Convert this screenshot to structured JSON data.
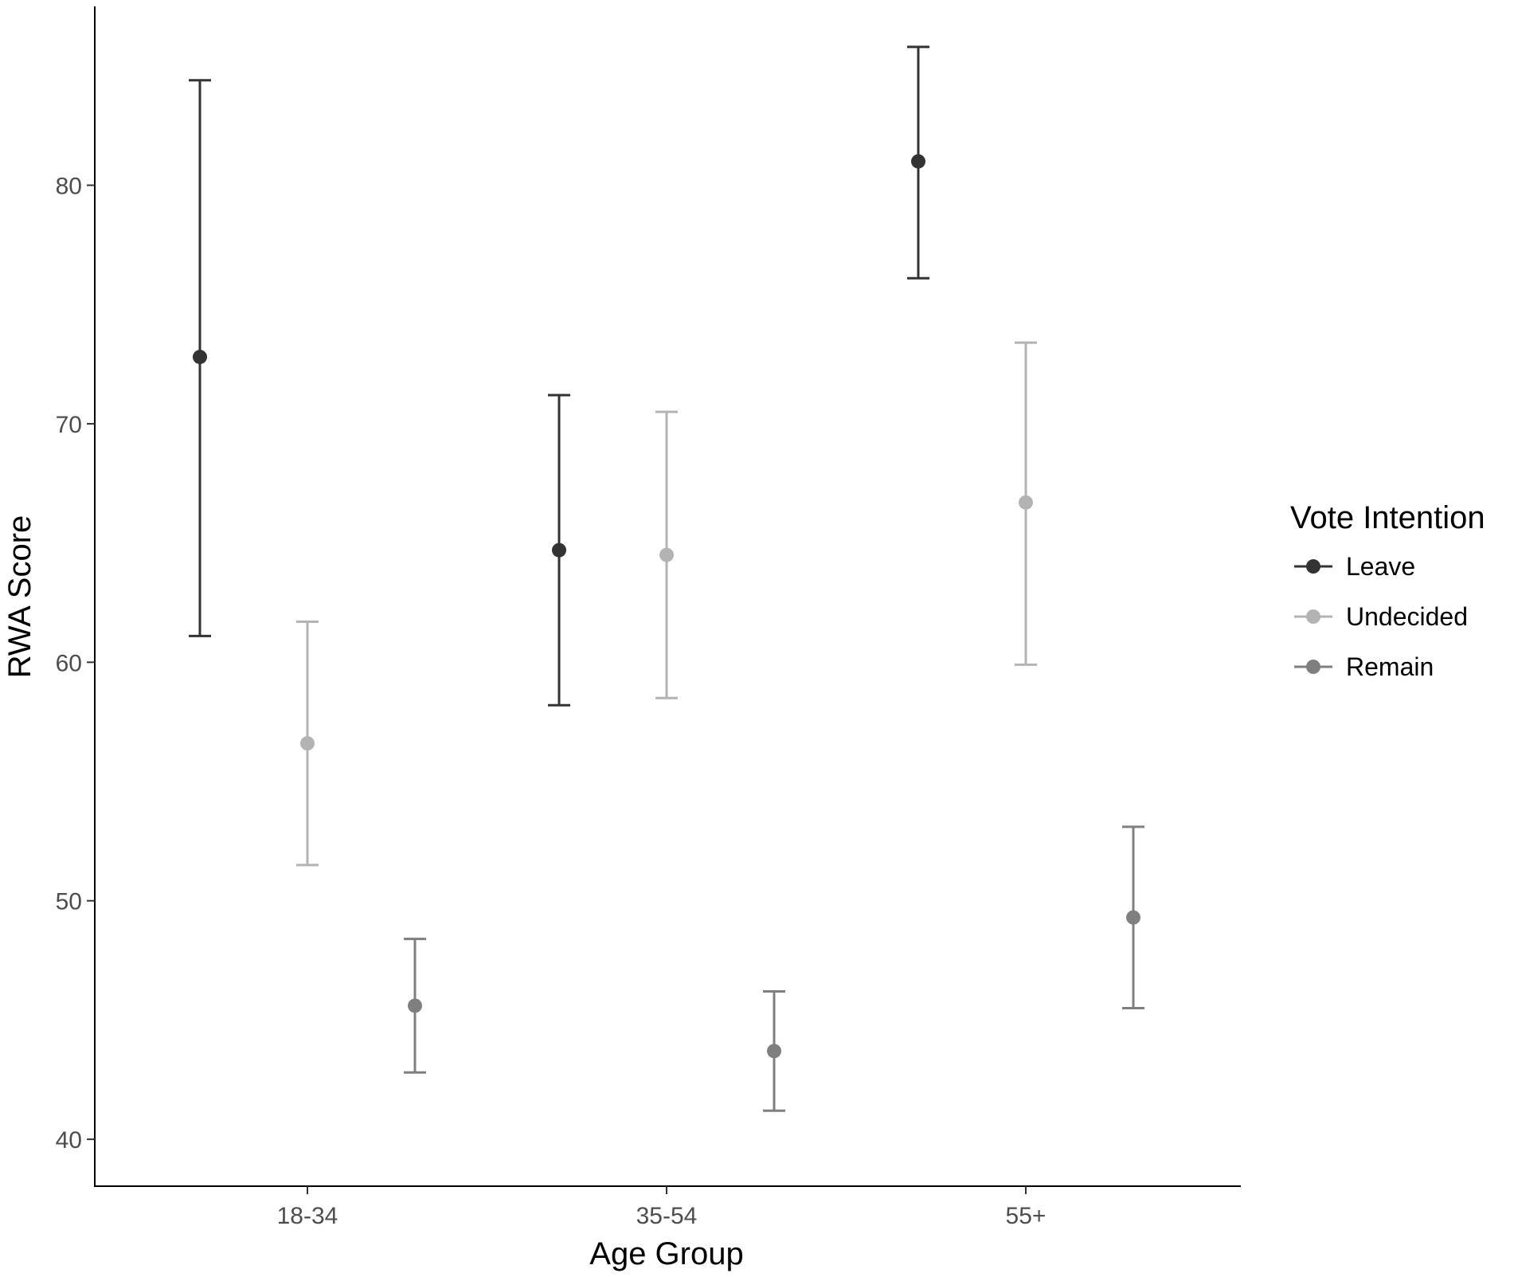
{
  "chart_data": {
    "type": "scatter",
    "subtype": "point-with-error-bars",
    "title": "",
    "xlabel": "Age Group",
    "ylabel": "RWA Score",
    "categories": [
      "18-34",
      "35-54",
      "55+"
    ],
    "ylim": [
      38,
      87.5
    ],
    "yticks": [
      40,
      50,
      60,
      70,
      80
    ],
    "grid": false,
    "legend": {
      "title": "Vote Intention",
      "placement": "right"
    },
    "series": [
      {
        "name": "Leave",
        "color": "#333333",
        "values": [
          72.8,
          64.7,
          81.0
        ],
        "lower": [
          61.1,
          58.2,
          76.1
        ],
        "upper": [
          84.4,
          71.2,
          85.8
        ]
      },
      {
        "name": "Undecided",
        "color": "#b3b3b3",
        "values": [
          56.6,
          64.5,
          66.7
        ],
        "lower": [
          51.5,
          58.5,
          59.9
        ],
        "upper": [
          61.7,
          70.5,
          73.4
        ]
      },
      {
        "name": "Remain",
        "color": "#7f7f7f",
        "values": [
          45.6,
          43.7,
          49.3
        ],
        "lower": [
          42.8,
          41.2,
          45.5
        ],
        "upper": [
          48.4,
          46.2,
          53.1
        ]
      }
    ]
  }
}
